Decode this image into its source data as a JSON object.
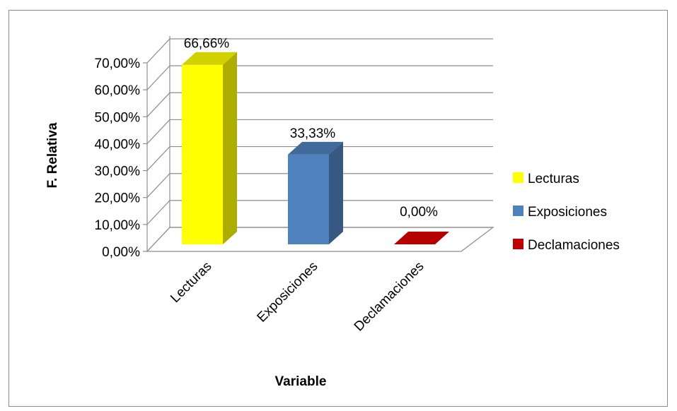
{
  "chart_data": {
    "type": "bar",
    "style": "3d-column",
    "categories": [
      "Lecturas",
      "Exposiciones",
      "Declamaciones"
    ],
    "values": [
      66.66,
      33.33,
      0.0
    ],
    "value_labels": [
      "66,66%",
      "33,33%",
      "0,00%"
    ],
    "colors": [
      "#ffff00",
      "#4f81bd",
      "#c00000"
    ],
    "ylim": [
      0,
      70
    ],
    "yticks": [
      0,
      10,
      20,
      30,
      40,
      50,
      60,
      70
    ],
    "ytick_labels": [
      "0,00%",
      "10,00%",
      "20,00%",
      "30,00%",
      "40,00%",
      "50,00%",
      "60,00%",
      "70,00%"
    ],
    "xlabel": "Variable",
    "ylabel": "F. Relativa",
    "grid": true,
    "legend": {
      "placement": "right",
      "entries": [
        "Lecturas",
        "Exposiciones",
        "Declamaciones"
      ]
    }
  }
}
